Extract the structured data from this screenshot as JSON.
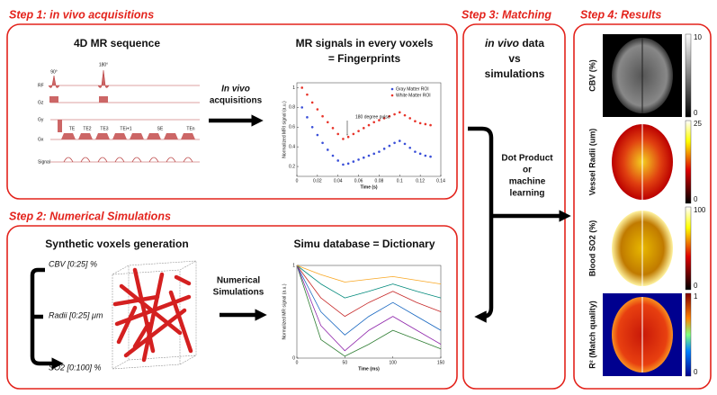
{
  "step1": {
    "title": "Step 1: in vivo acquisitions",
    "sequence_title": "4D MR sequence",
    "signals_title": [
      "MR signals in every voxels",
      "= Fingerprints"
    ],
    "arrow_label": [
      "In vivo",
      "acquisitions"
    ],
    "sequence": {
      "axes": [
        "RF",
        "Gz",
        "Gy",
        "Gx",
        "Signal"
      ],
      "pulses": [
        "90°",
        "180°"
      ],
      "echoes": [
        "TE",
        "TE2",
        "TE3",
        "TEi+1",
        "SE",
        "TEn"
      ]
    },
    "fingerprint_plot": {
      "type": "scatter",
      "xlabel": "Time (s)",
      "ylabel": "Normalized MRI signal (a.u.)",
      "annotation": "180 degree pulse",
      "x": [
        0.005,
        0.01,
        0.015,
        0.02,
        0.025,
        0.03,
        0.035,
        0.04,
        0.045,
        0.05,
        0.055,
        0.06,
        0.065,
        0.07,
        0.075,
        0.08,
        0.085,
        0.09,
        0.095,
        0.1,
        0.105,
        0.11,
        0.115,
        0.12,
        0.125,
        0.13
      ],
      "series": [
        {
          "name": "Gray Matter ROI",
          "color": "#3a4fd8",
          "values": [
            0.8,
            0.7,
            0.6,
            0.52,
            0.44,
            0.37,
            0.31,
            0.26,
            0.22,
            0.23,
            0.25,
            0.27,
            0.29,
            0.31,
            0.33,
            0.35,
            0.38,
            0.41,
            0.44,
            0.46,
            0.43,
            0.39,
            0.35,
            0.33,
            0.31,
            0.3
          ]
        },
        {
          "name": "White Matter ROI",
          "color": "#e8342a",
          "values": [
            1.0,
            0.93,
            0.85,
            0.78,
            0.71,
            0.65,
            0.59,
            0.53,
            0.48,
            0.5,
            0.53,
            0.56,
            0.59,
            0.62,
            0.65,
            0.67,
            0.69,
            0.71,
            0.73,
            0.75,
            0.72,
            0.69,
            0.66,
            0.64,
            0.63,
            0.62
          ]
        }
      ],
      "xlim": [
        0,
        0.14
      ],
      "ylim": [
        0.1,
        1.05
      ],
      "xticks": [
        0,
        0.02,
        0.04,
        0.06,
        0.08,
        0.1,
        0.12,
        0.14
      ],
      "yticks": [
        0.2,
        0.4,
        0.6,
        0.8,
        1
      ]
    }
  },
  "step2": {
    "title": "Step 2: Numerical Simulations",
    "generation_title": "Synthetic voxels generation",
    "parameters": [
      "CBV [0:25] %",
      "Radii [0:25] μm",
      "SO2 [0:100] %"
    ],
    "arrow_label": [
      "Numerical",
      "Simulations"
    ],
    "dictionary_title": "Simu database = Dictionary",
    "dictionary_plot": {
      "type": "line",
      "xlabel": "Time (ms)",
      "ylabel": "Normalized MR signal (a.u.)",
      "x": [
        0,
        25,
        50,
        75,
        100,
        125,
        150
      ],
      "series": [
        {
          "color": "#2e7d32",
          "values": [
            1,
            0.2,
            0.02,
            0.15,
            0.3,
            0.2,
            0.1
          ]
        },
        {
          "color": "#8e24aa",
          "values": [
            1,
            0.35,
            0.08,
            0.3,
            0.45,
            0.3,
            0.15
          ]
        },
        {
          "color": "#1565c0",
          "values": [
            1,
            0.5,
            0.25,
            0.45,
            0.6,
            0.45,
            0.3
          ]
        },
        {
          "color": "#c62828",
          "values": [
            1,
            0.65,
            0.45,
            0.6,
            0.72,
            0.6,
            0.5
          ]
        },
        {
          "color": "#00897b",
          "values": [
            1,
            0.8,
            0.65,
            0.72,
            0.8,
            0.72,
            0.65
          ]
        },
        {
          "color": "#f9a825",
          "values": [
            1,
            0.9,
            0.82,
            0.85,
            0.88,
            0.84,
            0.8
          ]
        }
      ],
      "xlim": [
        0,
        150
      ],
      "ylim": [
        0,
        1
      ],
      "xticks": [
        0,
        50,
        100,
        150
      ],
      "yticks": [
        0,
        1
      ]
    }
  },
  "step3": {
    "title": "Step 3: Matching",
    "comparison": {
      "emphasis": "in vivo",
      "rest": "data",
      "vs": "vs",
      "other": "simulations"
    },
    "method": [
      "Dot Product",
      "or",
      "machine",
      "learning"
    ]
  },
  "step4": {
    "title": "Step 4: Results",
    "panels": [
      {
        "label": "CBV (%)",
        "max": 10,
        "min": 0
      },
      {
        "label": "Vessel Radii (um)",
        "max": 25,
        "min": 0
      },
      {
        "label": "Blood SO2 (%)",
        "max": 100,
        "min": 0
      },
      {
        "label": "R² (Match quality)",
        "max": 1,
        "min": 0
      }
    ]
  }
}
